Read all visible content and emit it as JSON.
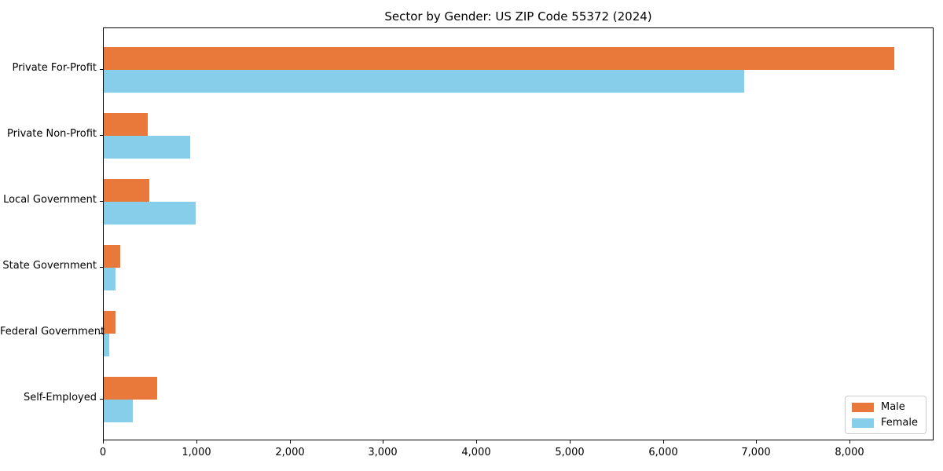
{
  "chart_data": {
    "type": "bar",
    "orientation": "horizontal",
    "title": "Sector by Gender: US ZIP Code 55372 (2024)",
    "xlabel": "",
    "ylabel": "",
    "categories": [
      "Private For-Profit",
      "Private Non-Profit",
      "Local Government",
      "State Government",
      "Federal Government",
      "Self-Employed"
    ],
    "series": [
      {
        "name": "Male",
        "color": "#e8793a",
        "values": [
          8473,
          473,
          490,
          177,
          127,
          574
        ]
      },
      {
        "name": "Female",
        "color": "#87ceeb",
        "values": [
          6861,
          928,
          987,
          127,
          59,
          312
        ]
      }
    ],
    "xlim": [
      0,
      8900
    ],
    "xticks": [
      0,
      1000,
      2000,
      3000,
      4000,
      5000,
      6000,
      7000,
      8000
    ],
    "xtick_labels": [
      "0",
      "1,000",
      "2,000",
      "3,000",
      "4,000",
      "5,000",
      "6,000",
      "7,000",
      "8,000"
    ],
    "grid": false,
    "legend_position": "lower right",
    "plot_border_color": "#000000",
    "background_color": "#ffffff"
  }
}
